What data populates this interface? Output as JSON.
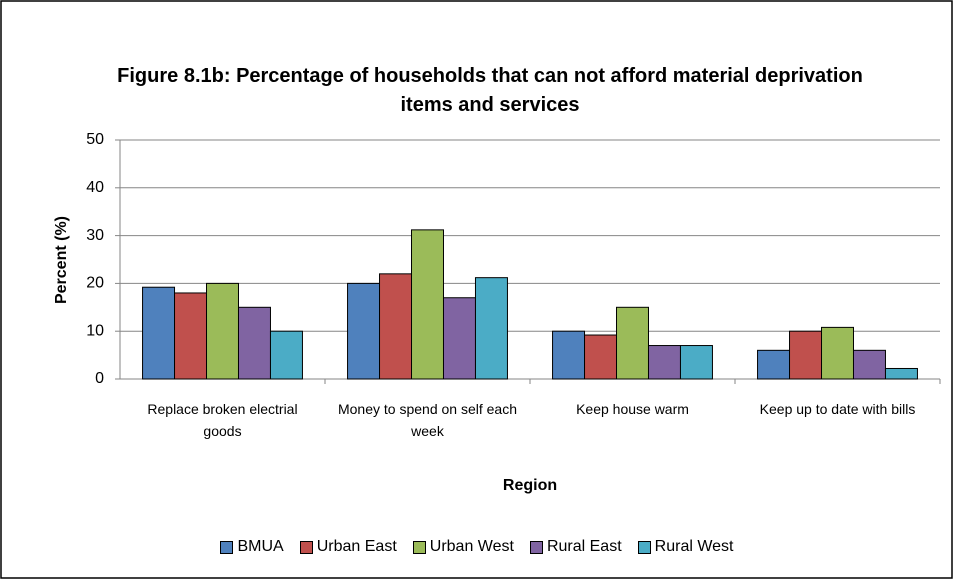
{
  "chart_data": {
    "type": "bar",
    "title": "Figure 8.1b: Percentage of households that can not afford material deprivation items and services",
    "x_label": "Region",
    "y_label": "Percent (%)",
    "categories": [
      "Replace broken electrial goods",
      "Money to spend on self each week",
      "Keep house warm",
      "Keep up to date with bills"
    ],
    "series": [
      {
        "name": "BMUA",
        "color": "#4f81bd",
        "values": [
          19.2,
          20,
          10,
          6
        ]
      },
      {
        "name": "Urban East",
        "color": "#c0504d",
        "values": [
          18,
          22,
          9.2,
          10
        ]
      },
      {
        "name": "Urban West",
        "color": "#9bbb59",
        "values": [
          20,
          31.2,
          15,
          10.8
        ]
      },
      {
        "name": "Rural East",
        "color": "#8064a2",
        "values": [
          15,
          17,
          7,
          6
        ]
      },
      {
        "name": "Rural West",
        "color": "#4bacc6",
        "values": [
          10,
          21.2,
          7,
          2.2
        ]
      }
    ],
    "ylim": [
      0,
      50
    ],
    "yticks": [
      0,
      10,
      20,
      30,
      40,
      50
    ],
    "grid": true,
    "legend": "bottom"
  }
}
